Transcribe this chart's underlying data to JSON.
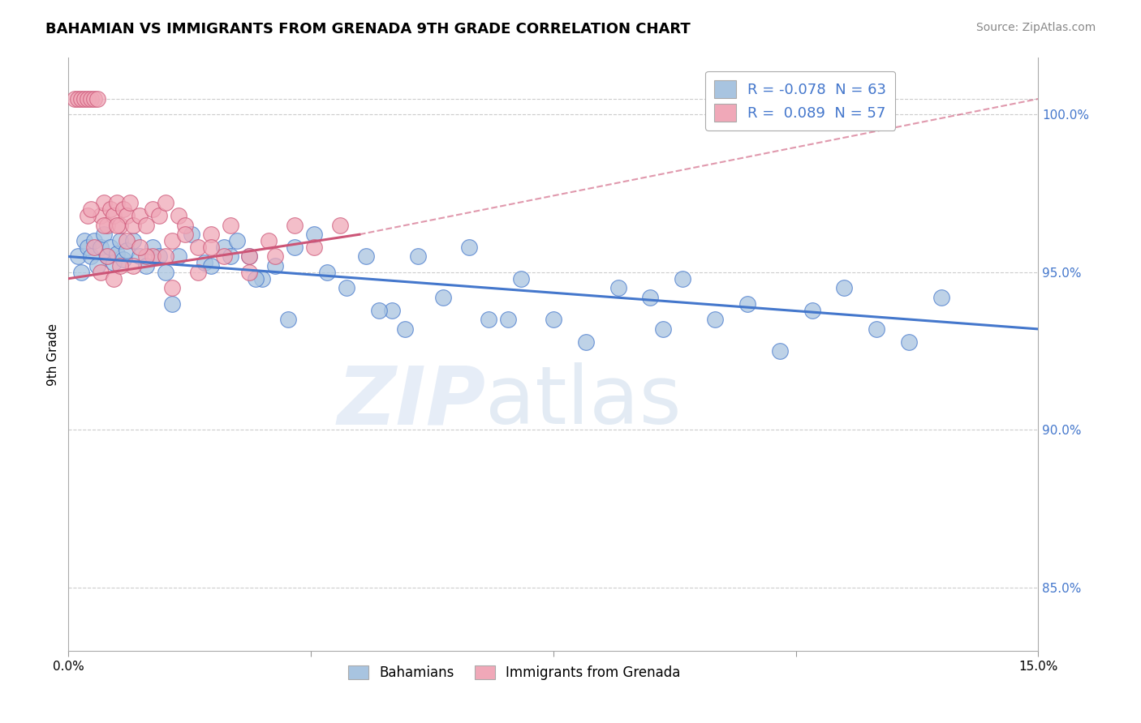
{
  "title": "BAHAMIAN VS IMMIGRANTS FROM GRENADA 9TH GRADE CORRELATION CHART",
  "source": "Source: ZipAtlas.com",
  "ylabel": "9th Grade",
  "xlim": [
    0.0,
    15.0
  ],
  "ylim": [
    83.0,
    101.8
  ],
  "yticks": [
    85.0,
    90.0,
    95.0,
    100.0
  ],
  "ytick_labels": [
    "85.0%",
    "90.0%",
    "95.0%",
    "100.0%"
  ],
  "xticks": [
    0.0,
    3.75,
    7.5,
    11.25,
    15.0
  ],
  "xtick_labels": [
    "0.0%",
    "",
    "",
    "",
    "15.0%"
  ],
  "legend_r_blue": "-0.078",
  "legend_n_blue": "63",
  "legend_r_pink": "0.089",
  "legend_n_pink": "57",
  "blue_color": "#a8c4e0",
  "pink_color": "#f0a8b8",
  "blue_line_color": "#4477cc",
  "pink_line_color": "#cc5577",
  "watermark_zip": "ZIP",
  "watermark_atlas": "atlas",
  "background_color": "#ffffff",
  "grid_color": "#cccccc",
  "blue_x": [
    0.15,
    0.2,
    0.25,
    0.3,
    0.35,
    0.4,
    0.45,
    0.5,
    0.55,
    0.6,
    0.65,
    0.7,
    0.75,
    0.8,
    0.85,
    0.9,
    1.0,
    1.1,
    1.2,
    1.3,
    1.5,
    1.7,
    1.9,
    2.1,
    2.4,
    2.6,
    2.8,
    3.0,
    3.2,
    3.5,
    3.8,
    4.0,
    4.3,
    4.6,
    5.0,
    5.4,
    5.8,
    6.2,
    6.5,
    7.0,
    7.5,
    8.0,
    8.5,
    9.0,
    9.5,
    10.0,
    10.5,
    11.0,
    11.5,
    12.0,
    12.5,
    13.0,
    13.5,
    2.2,
    2.9,
    3.4,
    1.6,
    4.8,
    5.2,
    1.4,
    6.8,
    9.2,
    2.5
  ],
  "blue_y": [
    95.5,
    95.0,
    96.0,
    95.8,
    95.5,
    96.0,
    95.2,
    95.8,
    96.2,
    95.5,
    95.8,
    95.3,
    95.6,
    96.0,
    95.4,
    95.7,
    96.0,
    95.5,
    95.2,
    95.8,
    95.0,
    95.5,
    96.2,
    95.3,
    95.8,
    96.0,
    95.5,
    94.8,
    95.2,
    95.8,
    96.2,
    95.0,
    94.5,
    95.5,
    93.8,
    95.5,
    94.2,
    95.8,
    93.5,
    94.8,
    93.5,
    92.8,
    94.5,
    94.2,
    94.8,
    93.5,
    94.0,
    92.5,
    93.8,
    94.5,
    93.2,
    92.8,
    94.2,
    95.2,
    94.8,
    93.5,
    94.0,
    93.8,
    93.2,
    95.5,
    93.5,
    93.2,
    95.5
  ],
  "pink_x": [
    0.1,
    0.15,
    0.2,
    0.25,
    0.3,
    0.35,
    0.4,
    0.45,
    0.5,
    0.55,
    0.6,
    0.65,
    0.7,
    0.75,
    0.8,
    0.85,
    0.9,
    0.95,
    1.0,
    1.1,
    1.2,
    1.3,
    1.4,
    1.5,
    1.6,
    1.7,
    1.8,
    2.0,
    2.2,
    2.5,
    2.8,
    3.1,
    3.5,
    3.8,
    0.5,
    0.7,
    1.0,
    1.3,
    1.6,
    2.0,
    2.4,
    0.4,
    0.8,
    1.2,
    2.8,
    0.6,
    0.3,
    1.5,
    0.9,
    1.1,
    2.2,
    0.55,
    0.75,
    0.35,
    1.8,
    3.2,
    4.2
  ],
  "pink_y": [
    100.5,
    100.5,
    100.5,
    100.5,
    100.5,
    100.5,
    100.5,
    100.5,
    96.8,
    97.2,
    96.5,
    97.0,
    96.8,
    97.2,
    96.5,
    97.0,
    96.8,
    97.2,
    96.5,
    96.8,
    96.5,
    97.0,
    96.8,
    97.2,
    96.0,
    96.8,
    96.5,
    95.8,
    96.2,
    96.5,
    95.5,
    96.0,
    96.5,
    95.8,
    95.0,
    94.8,
    95.2,
    95.5,
    94.5,
    95.0,
    95.5,
    95.8,
    95.2,
    95.5,
    95.0,
    95.5,
    96.8,
    95.5,
    96.0,
    95.8,
    95.8,
    96.5,
    96.5,
    97.0,
    96.2,
    95.5,
    96.5
  ],
  "blue_line_x0": 0.0,
  "blue_line_x1": 15.0,
  "blue_line_y0": 95.5,
  "blue_line_y1": 93.2,
  "pink_solid_x0": 0.0,
  "pink_solid_x1": 4.5,
  "pink_solid_y0": 94.8,
  "pink_solid_y1": 96.2,
  "pink_dash_x0": 4.5,
  "pink_dash_x1": 15.0,
  "pink_dash_y0": 96.2,
  "pink_dash_y1": 100.5
}
